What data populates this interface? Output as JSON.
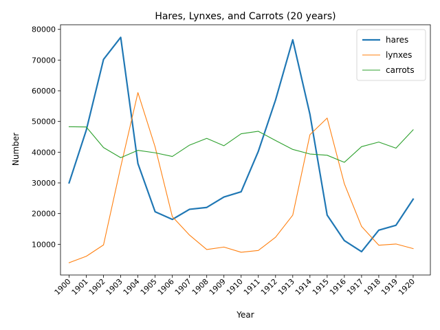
{
  "chart_data": {
    "type": "line",
    "title": "Hares, Lynxes, and Carrots (20 years)",
    "xlabel": "Year",
    "ylabel": "Number",
    "x": [
      1900,
      1901,
      1902,
      1903,
      1904,
      1905,
      1906,
      1907,
      1908,
      1909,
      1910,
      1911,
      1912,
      1913,
      1914,
      1915,
      1916,
      1917,
      1918,
      1919,
      1920
    ],
    "x_tick_labels": [
      "1900",
      "1901",
      "1902",
      "1903",
      "1904",
      "1905",
      "1906",
      "1907",
      "1908",
      "1909",
      "1910",
      "1911",
      "1912",
      "1913",
      "1914",
      "1915",
      "1916",
      "1917",
      "1918",
      "1919",
      "1920"
    ],
    "xlim": [
      1899.5,
      1921
    ],
    "ylim": [
      0,
      81500
    ],
    "y_ticks": [
      10000,
      20000,
      30000,
      40000,
      50000,
      60000,
      70000,
      80000
    ],
    "y_tick_labels": [
      "10000",
      "20000",
      "30000",
      "40000",
      "50000",
      "60000",
      "70000",
      "80000"
    ],
    "grid": false,
    "legend_position": "top-right",
    "series": [
      {
        "name": "hares",
        "color": "#1f77b4",
        "width": 2,
        "values": [
          30000,
          47200,
          70200,
          77400,
          36300,
          20600,
          18100,
          21400,
          22000,
          25400,
          27100,
          40300,
          57000,
          76600,
          52300,
          19500,
          11200,
          7600,
          14600,
          16200,
          24700
        ]
      },
      {
        "name": "lynxes",
        "color": "#ff7f0e",
        "width": 1,
        "values": [
          4000,
          6100,
          9800,
          35200,
          59400,
          41700,
          19000,
          13000,
          8300,
          9100,
          7400,
          8000,
          12300,
          19500,
          45700,
          51100,
          29700,
          15800,
          9700,
          10100,
          8600
        ]
      },
      {
        "name": "carrots",
        "color": "#2ca02c",
        "width": 1,
        "values": [
          48300,
          48200,
          41500,
          38200,
          40600,
          39800,
          38600,
          42300,
          44500,
          42100,
          46000,
          46800,
          43800,
          40900,
          39400,
          39000,
          36700,
          41800,
          43300,
          41300,
          47300
        ]
      }
    ]
  }
}
